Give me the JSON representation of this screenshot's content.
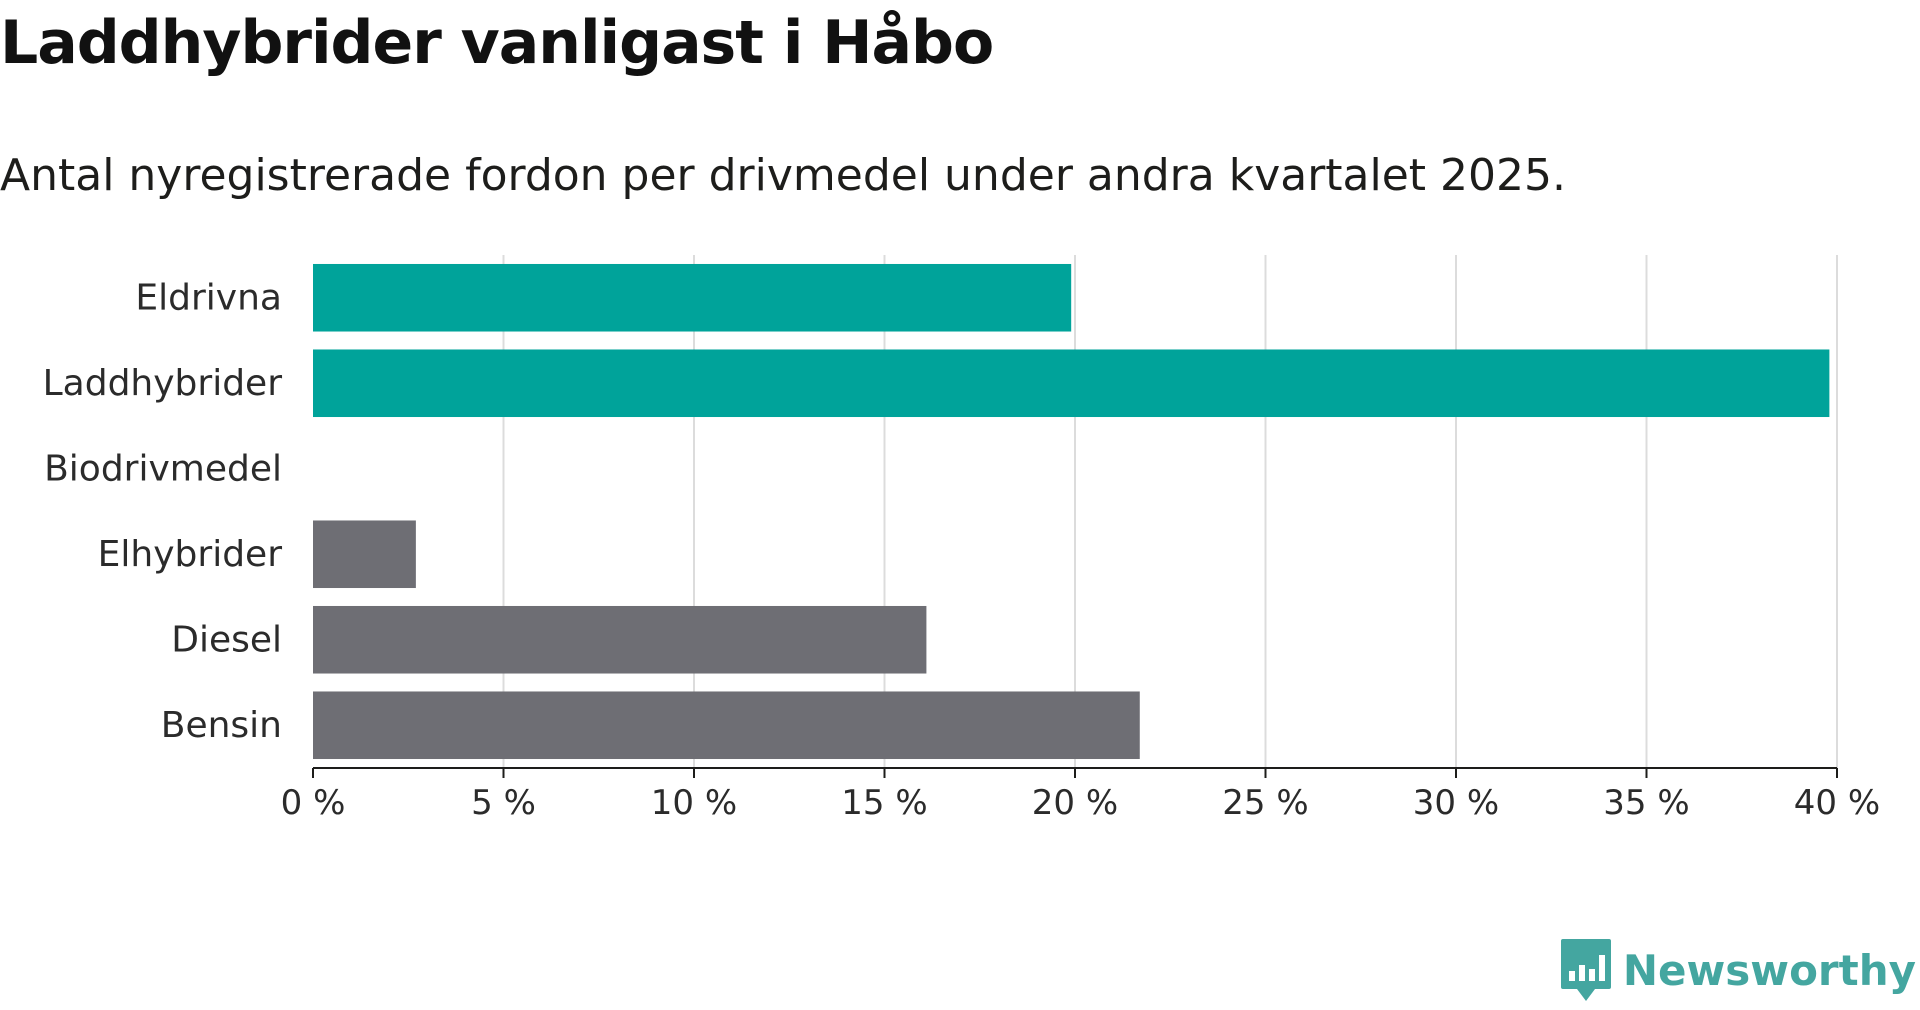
{
  "title": "Laddhybrider vanligast i Håbo",
  "subtitle": "Antal nyregistrerade fordon per drivmedel under andra kvartalet 2025.",
  "brand": {
    "name": "Newsworthy",
    "icon": "newsworthy-logo-icon",
    "color": "#44a6a0"
  },
  "chart_data": {
    "type": "bar",
    "orientation": "horizontal",
    "categories": [
      "Eldrivna",
      "Laddhybrider",
      "Biodrivmedel",
      "Elhybrider",
      "Diesel",
      "Bensin"
    ],
    "values": [
      19.9,
      39.8,
      0,
      2.7,
      16.1,
      21.7
    ],
    "colors": [
      "#00a39a",
      "#00a39a",
      "#6e6e74",
      "#6e6e74",
      "#6e6e74",
      "#6e6e74"
    ],
    "xlim": [
      0,
      40
    ],
    "xticks": [
      0,
      5,
      10,
      15,
      20,
      25,
      30,
      35,
      40
    ],
    "xtick_labels": [
      "0 %",
      "5 %",
      "10 %",
      "15 %",
      "20 %",
      "25 %",
      "30 %",
      "35 %",
      "40 %"
    ],
    "grid": true,
    "xlabel": "",
    "ylabel": ""
  }
}
